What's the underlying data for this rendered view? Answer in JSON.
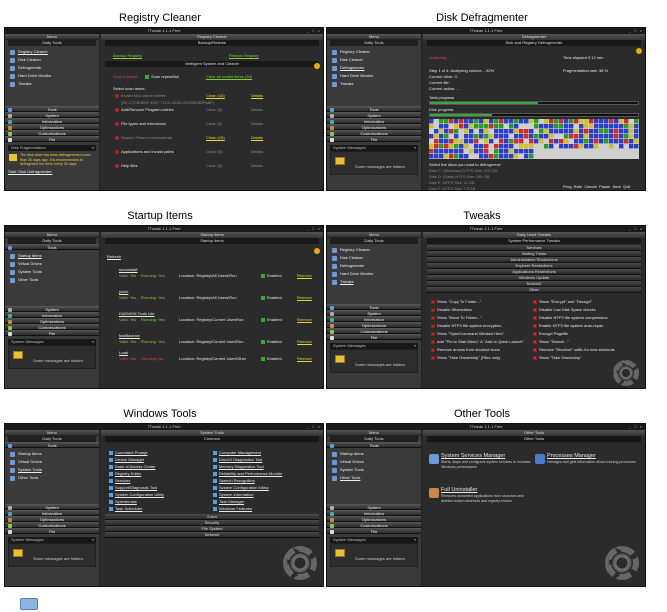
{
  "captions": [
    "Registry Cleaner",
    "Disk Defragmenter",
    "Startup Items",
    "Tweaks",
    "Windows Tools",
    "Other Tools"
  ],
  "common": {
    "window_title": "7Tweak 1.1.1 Free",
    "menu": "Menu",
    "daily_tools": "Daily Tools",
    "tools": "Tools",
    "system": "System",
    "information": "Information",
    "optimizations": "Optimizations",
    "customizations": "Customizations",
    "file": "File",
    "system_messages": "System Messages",
    "messages_hidden": "Some messages are hidden."
  },
  "p1": {
    "tools": [
      "Registry Cleaner",
      "Disk Cleaner",
      "Defragments",
      "Hard Drive Monitor",
      "Tweaks"
    ],
    "main_hdr": "Registry Cleaner",
    "sub_hdr": "Backup/Restore",
    "backup": "Backup Registry",
    "restore": "Restore Registry",
    "engine": "Intelligent System and Cleaner",
    "status": "Scan Initiated",
    "scan_all": "Scan repeat/full",
    "clear_all": "Clear all invalid items (38)",
    "select_items": "Select scan items:",
    "items": [
      {
        "label": "Invalid MUI cache entries",
        "count": "Clean (18)",
        "details": "Details"
      },
      {
        "label": "{2D-C7CB3EEF-EDF-71CD-9A5D-06CB5E6DFA8F}",
        "count": "",
        "details": ""
      },
      {
        "label": "Add/Remove Program entries",
        "count": "Clean (0)",
        "details": "Details"
      },
      {
        "label": "File types and extensions",
        "count": "Clean (0)",
        "details": "Details"
      },
      {
        "label": "Sound / Shared components",
        "count": "Clean (15)",
        "details": "Details"
      },
      {
        "label": "Applications and invalid paths",
        "count": "Clean (0)",
        "details": "Details"
      },
      {
        "label": "Help files",
        "count": "Clean (0)",
        "details": "Details"
      }
    ],
    "frag_label": "Disk Fragmentation",
    "frag_text": "The disk drive has been defragmented more than 30 days ago. It is recommended to defragment the drive every 30 days.",
    "frag_link": "Start 'Disk Defragmenter'"
  },
  "p2": {
    "tools": [
      "Registry Cleaner",
      "Disk Cleaner",
      "Defragmenter",
      "Hard Drive Monitor",
      "Tweaks"
    ],
    "main_hdr": "Defragmenter",
    "sub_hdr": "Disk and Registry Defragmenter",
    "state": "Analyzing...",
    "step": "Step 1 of 4: Analyzing volume... 52%",
    "lines": [
      "Current drive: C:",
      "Current file:",
      "Current action: ..."
    ],
    "time": "Time elapsed 0:12 min",
    "frag_rate": "Fragmentation rate: 38 %",
    "total_progress": "Total progress",
    "disk_progress": "Disk progress",
    "select_disks": "Select the discs you want to defragment:",
    "disks": [
      "Disk C: (Windows) NTFS Size 223 GB",
      "Disk D: (Data) NTFS Size 180 GB",
      "Disk E: NTFS Size 14 GB",
      "Disk F: NTFS Size 7.3 GB"
    ],
    "buttons": [
      "Prog. Rate",
      "Cancel",
      "Pause",
      "Next",
      "Quit"
    ],
    "progress_total": 0.52,
    "progress_disk": 0.3
  },
  "p3": {
    "tools": [
      "Startup items",
      "Virtual Drives",
      "System Tools",
      "Other Tools"
    ],
    "main_hdr": "Startup items",
    "sub_hdr": "Startup items",
    "refresh": "Refresh",
    "items": [
      {
        "name": "soundstaft",
        "valid": "Valid: Yes",
        "running": "Running: Yes",
        "loc": "Location: Registry\\All Users\\Run",
        "state": "Enabled",
        "remove": "Remove"
      },
      {
        "name": "jusch",
        "valid": "Valid: Yes",
        "running": "Running: Yes",
        "loc": "Location: Registry\\All Users\\Run",
        "state": "Enabled",
        "remove": "Remove"
      },
      {
        "name": "DAEMON Tools Lite",
        "valid": "Valid: Yes",
        "running": "Running: Yes",
        "loc": "Location: Registry\\Current User\\Run",
        "state": "Enabled",
        "remove": "Remove"
      },
      {
        "name": "fastBalance",
        "valid": "Valid: Yes",
        "running": "Running: Yes",
        "loc": "Location: Registry\\Current User\\Run",
        "state": "Enabled",
        "remove": "Remove"
      },
      {
        "name": "Load",
        "valid": "Valid: Yes",
        "running": "Running: No",
        "loc": "Location: Registry\\Current User\\Other",
        "state": "Enabled",
        "remove": "Remove"
      }
    ]
  },
  "p4": {
    "tools": [
      "Registry Cleaner",
      "Disk Cleaner",
      "Defragmenter",
      "Hard Drive Monitor",
      "Tweaks"
    ],
    "main_hdr": "Daily Used Tweaks",
    "sub_hdr": "System Performance Tweaks",
    "categories": [
      "Services",
      "Visiting Times",
      "Administrative Restrictions",
      "Explorer Restrictions",
      "Applications Restrictions",
      "Windows Update",
      "Network",
      "Other"
    ],
    "left": [
      "Show \"Copy To Folder...\"",
      "Disable Hibernation",
      "Show \"Move To Folder...\"",
      "Disable NTFS file system encryption",
      "Show \"OpenCommand Window Here\"",
      "Add \"Pin to Start Menu\" & \"Add to Quick Launch\"",
      "Remove arrows from shortcut icons",
      "Show \"Take Ownership\" (Files only)"
    ],
    "right": [
      "Show \"Encrypt\" and \"Decrypt\"",
      "Disable Low Disk Space checks",
      "Disable NTFS file system compression",
      "Enable NTFS file system auto-repair",
      "Encrypt Pagefile",
      "Show \"Search...\"",
      "Remove \"Shortcut\" suffix for new shortcuts",
      "Show \"Take Ownership\""
    ]
  },
  "p5": {
    "tools": [
      "Startup items",
      "Virtual Drives",
      "System Tools",
      "Other Tools"
    ],
    "main_hdr": "System Tools",
    "sub_hdr": "Common",
    "left": [
      "Command Prompt",
      "Device Manager",
      "Ease of Access Center",
      "Registry Editor",
      "Services",
      "Support/Diagnostic Tool",
      "System Configuration Utility",
      "Sysinternals",
      "Task Scheduler"
    ],
    "right": [
      "Computer Management",
      "DirectX Diagnostics Tool",
      "Memory Diagnostics Tool",
      "Reliability and Performance Monitor",
      "Speech Recognition",
      "System Configuration Editor",
      "System Information",
      "Task Manager",
      "Windows Features"
    ],
    "categories": [
      "Extra",
      "Security",
      "File System",
      "Network"
    ]
  },
  "p6": {
    "tools": [
      "Startup items",
      "Virtual Drives",
      "System Tools",
      "Other Tools"
    ],
    "main_hdr": "Other Tools",
    "sub_hdr": "Other Tools",
    "items": [
      {
        "title": "System Services Manager",
        "desc": "Starts, stops and configures system services to increase Windows performance"
      },
      {
        "title": "Processes Manager",
        "desc": "Manages and gets information about running processes"
      },
      {
        "title": "Full Uninstaller",
        "desc": "Removes unwanted applications from searches and deletes broken shortcuts and registry entries"
      }
    ]
  }
}
